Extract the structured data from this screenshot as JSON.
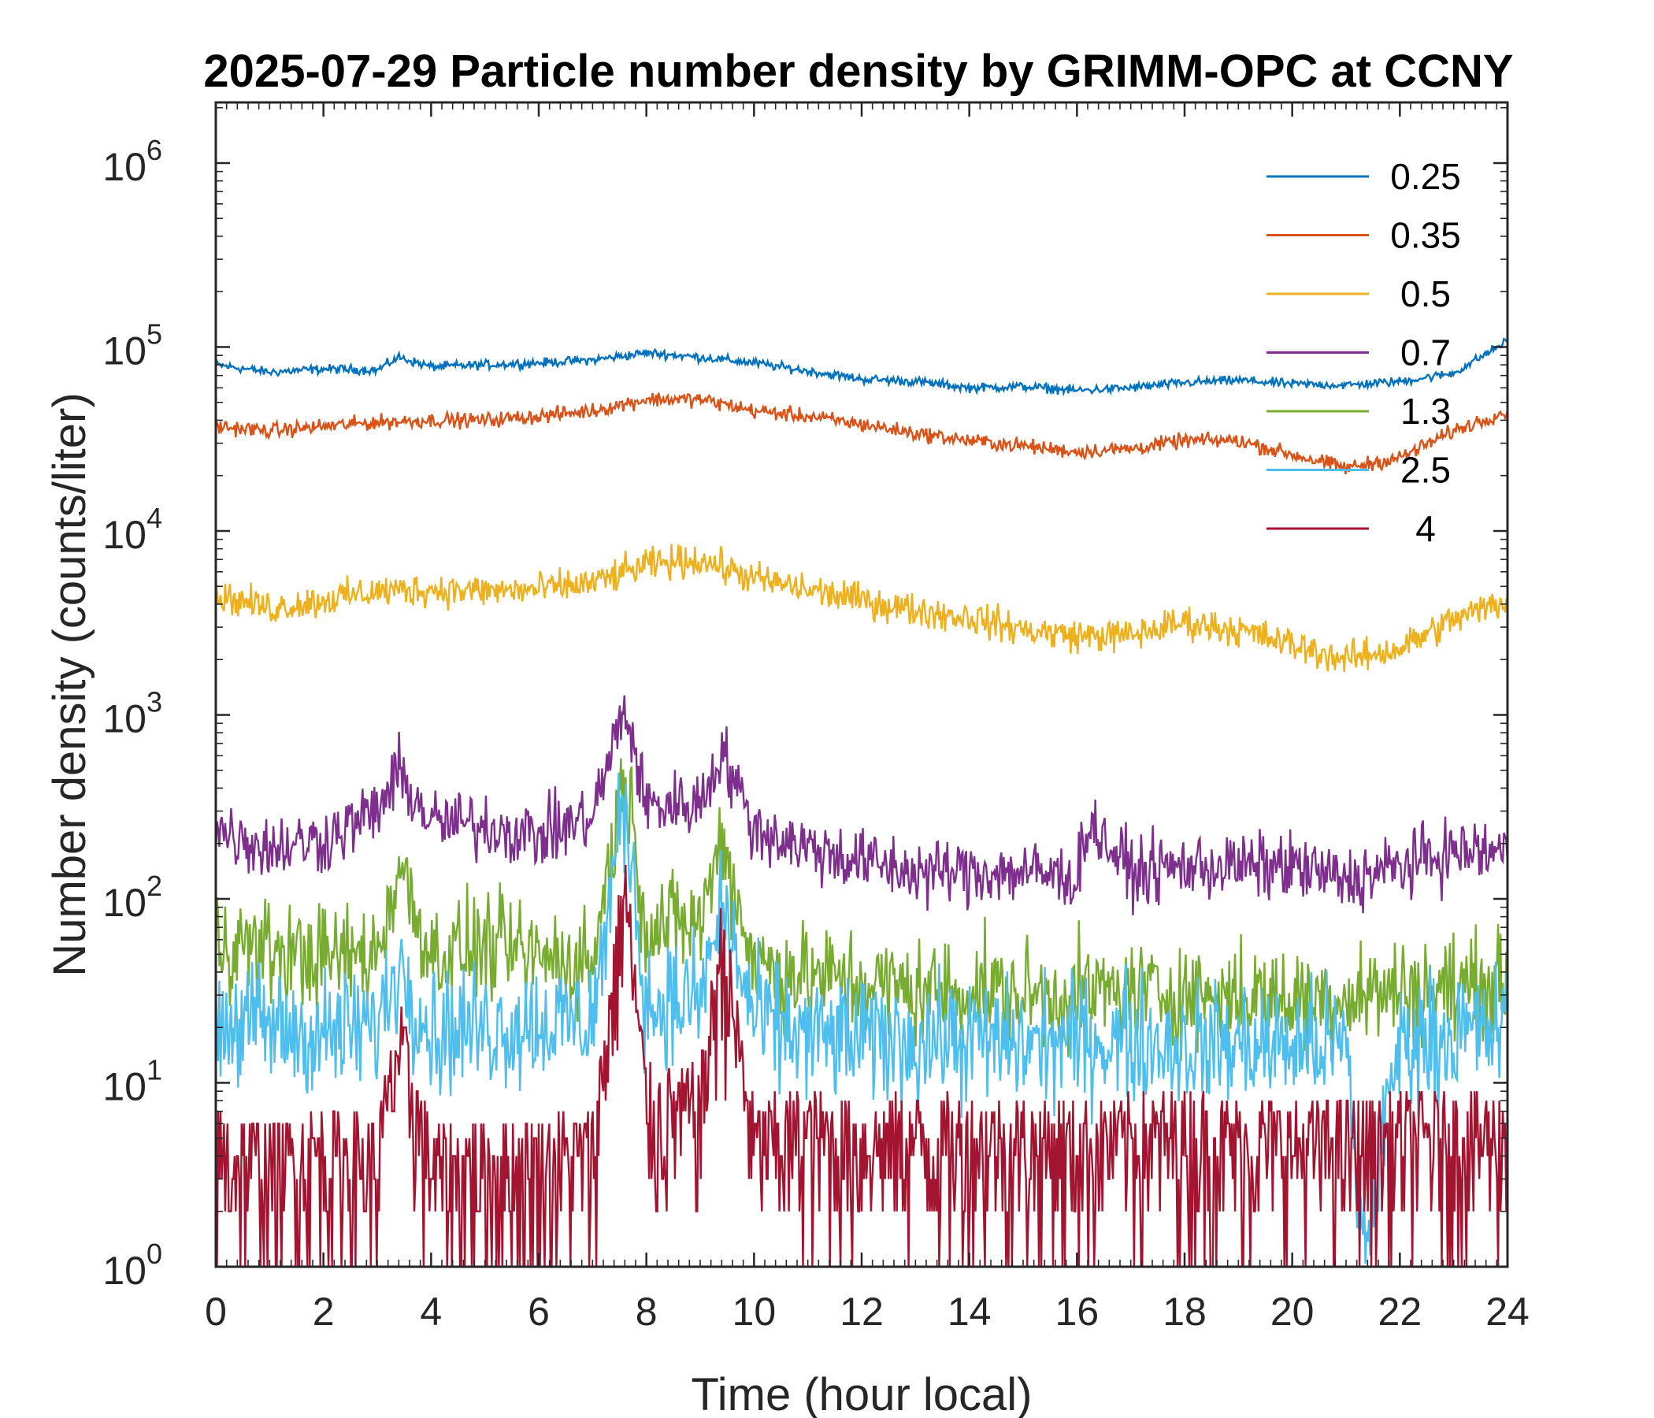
{
  "chart_data": {
    "type": "line",
    "title": "2025-07-29 Particle number density by GRIMM-OPC at CCNY",
    "xlabel": "Time (hour local)",
    "ylabel": "Number density (counts/liter)",
    "xlim": [
      0,
      24
    ],
    "ylim": [
      1,
      2000000
    ],
    "yscale": "log",
    "grid": false,
    "legend_position": "top-right",
    "x_ticks": [
      "0",
      "2",
      "4",
      "6",
      "8",
      "10",
      "12",
      "14",
      "16",
      "18",
      "20",
      "22",
      "24"
    ],
    "y_ticks": [
      {
        "base": "10",
        "exp": "0"
      },
      {
        "base": "10",
        "exp": "1"
      },
      {
        "base": "10",
        "exp": "2"
      },
      {
        "base": "10",
        "exp": "3"
      },
      {
        "base": "10",
        "exp": "4"
      },
      {
        "base": "10",
        "exp": "5"
      },
      {
        "base": "10",
        "exp": "6"
      }
    ],
    "series": [
      {
        "name": "0.25",
        "color": "#0072BD",
        "x": [
          0,
          1,
          2,
          3,
          3.4,
          4,
          5,
          6,
          7,
          8,
          9,
          10,
          11,
          12,
          13,
          14,
          15,
          16,
          17,
          18,
          19,
          20,
          21,
          22,
          23,
          24
        ],
        "y": [
          80000,
          73000,
          76000,
          75000,
          88000,
          78000,
          80000,
          82000,
          85000,
          93000,
          88000,
          82000,
          74000,
          67000,
          65000,
          60000,
          61000,
          58000,
          60000,
          64000,
          66000,
          63000,
          62000,
          65000,
          72000,
          108000
        ]
      },
      {
        "name": "0.35",
        "color": "#D95319",
        "x": [
          0,
          1,
          2,
          3,
          4,
          5,
          6,
          7,
          8,
          9,
          10,
          11,
          12,
          13,
          14,
          15,
          16,
          17,
          18,
          19,
          20,
          21,
          22,
          23,
          24
        ],
        "y": [
          37000,
          35000,
          37000,
          39000,
          40000,
          40000,
          42000,
          45000,
          52000,
          52000,
          45000,
          42000,
          38000,
          34000,
          31000,
          29000,
          27000,
          28000,
          31000,
          31000,
          26000,
          22000,
          25000,
          35000,
          45000
        ]
      },
      {
        "name": "0.5",
        "color": "#EDB120",
        "x": [
          0,
          1,
          2,
          3,
          4,
          5,
          6,
          7,
          8,
          9,
          10,
          11,
          12,
          13,
          14,
          15,
          16,
          17,
          18,
          19,
          20,
          21,
          22,
          23,
          24
        ],
        "y": [
          4500,
          3800,
          4200,
          4700,
          4800,
          4700,
          4800,
          5200,
          6500,
          7000,
          5500,
          4800,
          4200,
          3700,
          3400,
          2900,
          2700,
          2700,
          3200,
          2900,
          2400,
          2000,
          2300,
          3300,
          4200
        ]
      },
      {
        "name": "0.7",
        "color": "#7E2F8E",
        "x": [
          0,
          1,
          2,
          3,
          3.4,
          4,
          5,
          6,
          7,
          7.6,
          8,
          9,
          9.4,
          10,
          11,
          12,
          13,
          14,
          15,
          16,
          16.2,
          17,
          18,
          19,
          20,
          21,
          22,
          23,
          24
        ],
        "y": [
          240,
          190,
          210,
          300,
          480,
          260,
          250,
          220,
          280,
          1100,
          320,
          330,
          640,
          240,
          190,
          160,
          140,
          140,
          140,
          130,
          260,
          140,
          150,
          150,
          150,
          125,
          150,
          180,
          180
        ]
      },
      {
        "name": "1.3",
        "color": "#77AC30",
        "x": [
          0,
          1,
          2,
          3,
          3.4,
          4,
          5,
          6,
          7,
          7.6,
          8,
          9,
          9.4,
          10,
          11,
          12,
          13,
          14,
          15,
          16,
          17,
          18,
          19,
          20,
          21,
          22,
          23,
          24
        ],
        "y": [
          60,
          52,
          48,
          50,
          150,
          50,
          55,
          48,
          45,
          500,
          70,
          75,
          210,
          45,
          38,
          35,
          32,
          32,
          30,
          30,
          32,
          30,
          30,
          28,
          30,
          32,
          33,
          35
        ]
      },
      {
        "name": "2.5",
        "color": "#4DBEEE",
        "x": [
          0,
          1,
          2,
          3,
          3.4,
          4,
          5,
          6,
          7,
          7.6,
          8,
          9,
          9.4,
          10,
          11,
          12,
          13,
          14,
          15,
          16,
          17,
          18,
          19,
          20,
          21,
          21.3,
          22,
          23,
          24
        ],
        "y": [
          22,
          20,
          18,
          20,
          45,
          19,
          20,
          21,
          22,
          350,
          26,
          28,
          90,
          22,
          18,
          17,
          17,
          17,
          16,
          17,
          17,
          16,
          16,
          16,
          16,
          1.2,
          17,
          18,
          20
        ]
      },
      {
        "name": "4",
        "color": "#A2142F",
        "x": [
          0,
          1,
          2,
          3,
          3.4,
          4,
          5,
          6,
          7,
          7.6,
          8,
          9,
          9.4,
          10,
          11,
          12,
          13,
          14,
          15,
          16,
          17,
          18,
          19,
          20,
          21,
          22,
          23,
          24
        ],
        "y": [
          3.5,
          3,
          3.5,
          3.2,
          14,
          3,
          3,
          3.2,
          3.5,
          100,
          6,
          6,
          50,
          4,
          4.5,
          4,
          4.2,
          4,
          4,
          4,
          4.2,
          4.5,
          4,
          4,
          4,
          4.2,
          4.5,
          4.5
        ]
      }
    ]
  }
}
